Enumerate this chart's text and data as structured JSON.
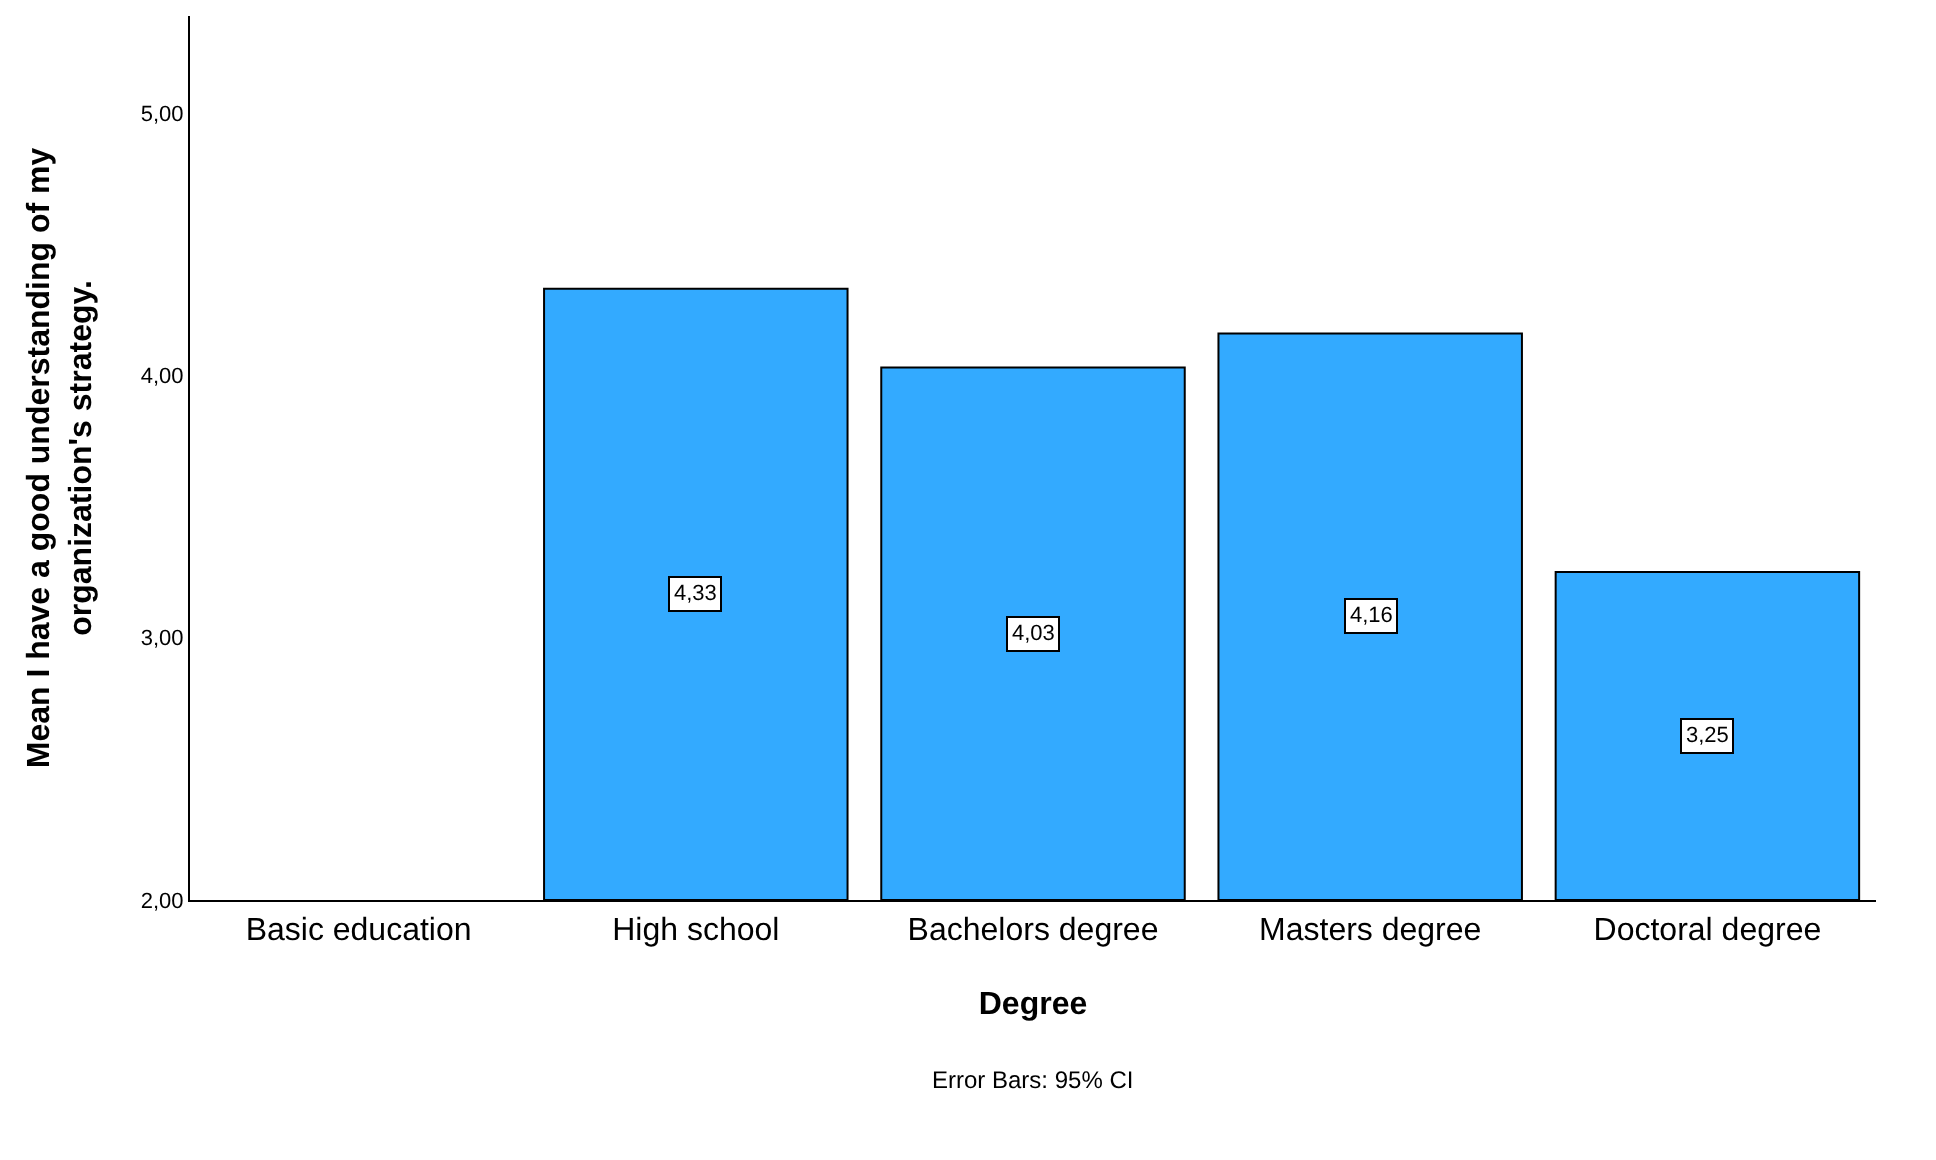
{
  "chart_data": {
    "type": "bar",
    "xlabel": "Degree",
    "ylabel": "Mean I have a good understanding of my organization's strategy.",
    "categories": [
      "Basic education",
      "High school",
      "Bachelors degree",
      "Masters degree",
      "Doctoral degree"
    ],
    "values": [
      null,
      4.33,
      4.03,
      4.16,
      3.25
    ],
    "value_labels": [
      null,
      "4,33",
      "4,03",
      "4,16",
      "3,25"
    ],
    "color": "#33aaff",
    "ylim": [
      2,
      5.37
    ],
    "yticks": [
      {
        "value": 2,
        "label": "2,00"
      },
      {
        "value": 3,
        "label": "3,00"
      },
      {
        "value": 4,
        "label": "4,00"
      },
      {
        "value": 5,
        "label": "5,00"
      }
    ],
    "annotations": [
      "Error Bars: 95% CI"
    ]
  }
}
